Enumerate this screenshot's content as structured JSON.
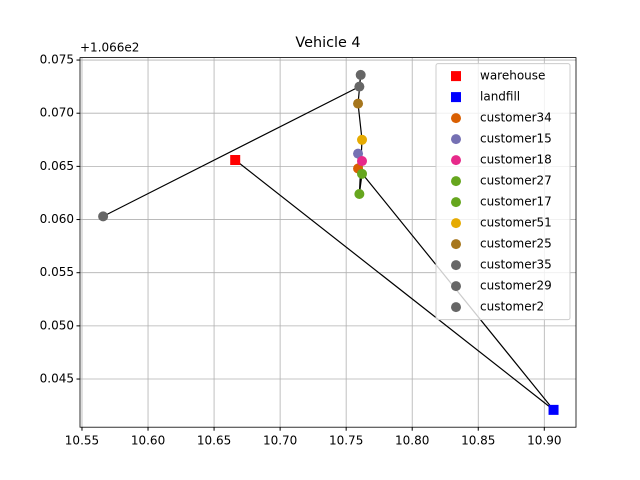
{
  "chart_data": {
    "type": "scatter",
    "title": "Vehicle 4",
    "y_offset_label": "+1.066e2",
    "xlim": [
      10.5485,
      10.924
    ],
    "ylim": [
      0.04047,
      0.07523
    ],
    "xticks": [
      10.55,
      {
        "value": 10.6,
        "label": "10.60"
      },
      10.65,
      {
        "value": 10.7,
        "label": "10.70"
      },
      10.75,
      {
        "value": 10.8,
        "label": "10.80"
      },
      10.85,
      {
        "value": 10.9,
        "label": "10.90"
      }
    ],
    "yticks": [
      0.045,
      {
        "value": 0.05,
        "label": "0.050"
      },
      0.055,
      {
        "value": 0.06,
        "label": "0.060"
      },
      0.065,
      {
        "value": 0.07,
        "label": "0.070"
      },
      0.075
    ],
    "grid": true,
    "legend": "upper right",
    "route_color": "#000000",
    "series": [
      {
        "name": "warehouse",
        "color": "#ff0000",
        "marker": "square",
        "x": [
          10.666
        ],
        "y": [
          0.0656
        ]
      },
      {
        "name": "landfill",
        "color": "#0000ff",
        "marker": "square",
        "x": [
          10.907
        ],
        "y": [
          0.0421
        ]
      },
      {
        "name": "customer34",
        "color": "#d95f02",
        "marker": "circle",
        "x": [
          10.759
        ],
        "y": [
          0.0648
        ]
      },
      {
        "name": "customer15",
        "color": "#7570b3",
        "marker": "circle",
        "x": [
          10.759
        ],
        "y": [
          0.0662
        ]
      },
      {
        "name": "customer18",
        "color": "#e7298a",
        "marker": "circle",
        "x": [
          10.762
        ],
        "y": [
          0.0655
        ]
      },
      {
        "name": "customer27",
        "color": "#66a61e",
        "marker": "circle",
        "x": [
          10.762
        ],
        "y": [
          0.0643
        ]
      },
      {
        "name": "customer17",
        "color": "#66a61e",
        "marker": "circle",
        "x": [
          10.76
        ],
        "y": [
          0.0624
        ]
      },
      {
        "name": "customer51",
        "color": "#e6ab02",
        "marker": "circle",
        "x": [
          10.762
        ],
        "y": [
          0.0675
        ]
      },
      {
        "name": "customer25",
        "color": "#a6761d",
        "marker": "circle",
        "x": [
          10.759
        ],
        "y": [
          0.0709
        ]
      },
      {
        "name": "customer35",
        "color": "#666666",
        "marker": "circle",
        "x": [
          10.761
        ],
        "y": [
          0.0736
        ]
      },
      {
        "name": "customer29",
        "color": "#666666",
        "marker": "circle",
        "x": [
          10.76
        ],
        "y": [
          0.0725
        ]
      },
      {
        "name": "customer2",
        "color": "#666666",
        "marker": "circle",
        "x": [
          10.566
        ],
        "y": [
          0.0603
        ]
      }
    ]
  }
}
